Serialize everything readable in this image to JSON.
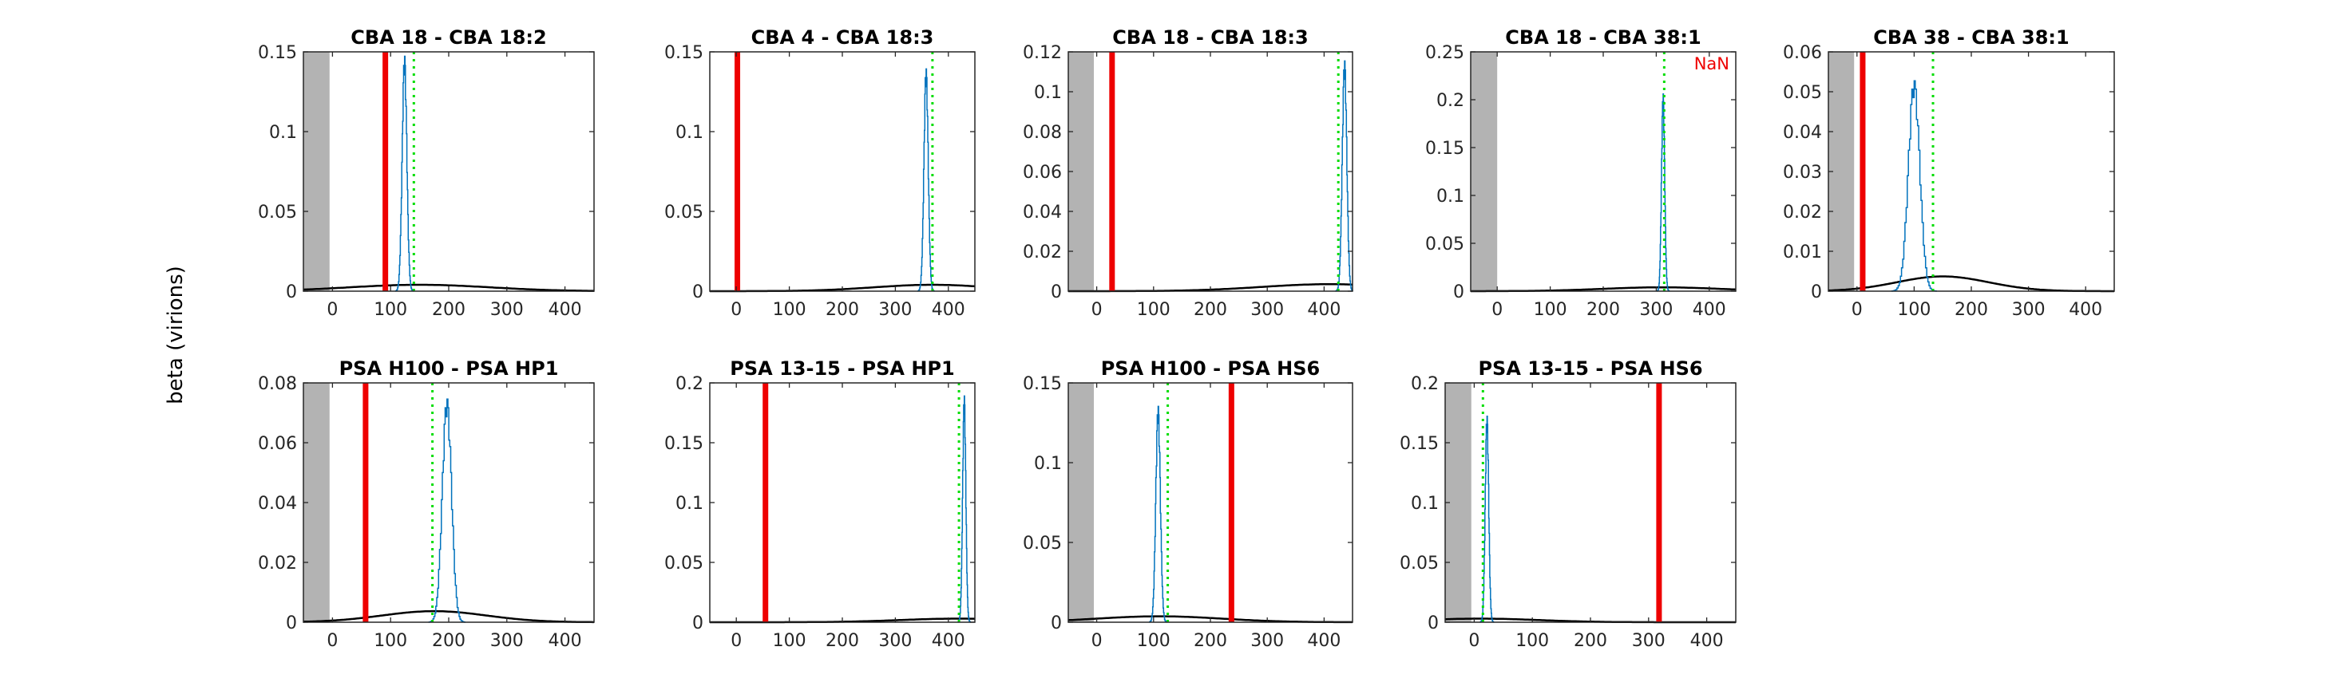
{
  "figure": {
    "ylabel": "beta (virions)"
  },
  "chart_data": [
    {
      "type": "line",
      "title": "CBA 18 - CBA 18:2",
      "xlim": [
        -50,
        450
      ],
      "ylim": [
        0,
        0.15
      ],
      "xticks": [
        0,
        100,
        200,
        300,
        400
      ],
      "yticks": [
        0,
        0.05,
        0.1,
        0.15
      ],
      "ytick_labels": [
        "0",
        "0.05",
        "0.1",
        "0.15"
      ],
      "shaded_x": [
        -50,
        -5
      ],
      "red_line_x": 91,
      "green_line_x": 140,
      "annotation": "",
      "hist_center": 124,
      "hist_width": 4,
      "hist_peak": 0.148,
      "prior_center": 150,
      "prior_width": 120,
      "prior_peak": 0.004
    },
    {
      "type": "line",
      "title": "CBA 4 - CBA 18:3",
      "xlim": [
        -50,
        450
      ],
      "ylim": [
        0,
        0.15
      ],
      "xticks": [
        0,
        100,
        200,
        300,
        400
      ],
      "yticks": [
        0,
        0.05,
        0.1,
        0.15
      ],
      "ytick_labels": [
        "0",
        "0.05",
        "0.1",
        "0.15"
      ],
      "shaded_x": null,
      "red_line_x": 2,
      "green_line_x": 370,
      "annotation": "",
      "hist_center": 358,
      "hist_width": 4,
      "hist_peak": 0.14,
      "prior_center": 370,
      "prior_width": 110,
      "prior_peak": 0.004
    },
    {
      "type": "line",
      "title": "CBA 18 - CBA 18:3",
      "xlim": [
        -50,
        450
      ],
      "ylim": [
        0,
        0.12
      ],
      "xticks": [
        0,
        100,
        200,
        300,
        400
      ],
      "yticks": [
        0,
        0.02,
        0.04,
        0.06,
        0.08,
        0.1,
        0.12
      ],
      "ytick_labels": [
        "0",
        "0.02",
        "0.04",
        "0.06",
        "0.08",
        "0.1",
        "0.12"
      ],
      "shaded_x": [
        -50,
        -5
      ],
      "red_line_x": 27,
      "green_line_x": 425,
      "annotation": "",
      "hist_center": 436,
      "hist_width": 4,
      "hist_peak": 0.116,
      "prior_center": 410,
      "prior_width": 120,
      "prior_peak": 0.0035
    },
    {
      "type": "line",
      "title": "CBA 18 - CBA 38:1",
      "xlim": [
        -50,
        450
      ],
      "ylim": [
        0,
        0.25
      ],
      "xticks": [
        0,
        100,
        200,
        300,
        400
      ],
      "yticks": [
        0,
        0.05,
        0.1,
        0.15,
        0.2,
        0.25
      ],
      "ytick_labels": [
        "0",
        "0.05",
        "0.1",
        "0.15",
        "0.2",
        "0.25"
      ],
      "shaded_x": [
        -50,
        0
      ],
      "red_line_x": null,
      "green_line_x": 315,
      "annotation": "NaN",
      "hist_center": 313,
      "hist_width": 3,
      "hist_peak": 0.207,
      "prior_center": 310,
      "prior_width": 110,
      "prior_peak": 0.004
    },
    {
      "type": "line",
      "title": "CBA 38 - CBA 38:1",
      "xlim": [
        -50,
        450
      ],
      "ylim": [
        0,
        0.06
      ],
      "xticks": [
        0,
        100,
        200,
        300,
        400
      ],
      "yticks": [
        0,
        0.01,
        0.02,
        0.03,
        0.04,
        0.05,
        0.06
      ],
      "ytick_labels": [
        "0",
        "0.01",
        "0.02",
        "0.03",
        "0.04",
        "0.05",
        "0.06"
      ],
      "shaded_x": [
        -50,
        -5
      ],
      "red_line_x": 10,
      "green_line_x": 133,
      "annotation": "",
      "hist_center": 100,
      "hist_width": 10,
      "hist_peak": 0.053,
      "prior_center": 150,
      "prior_width": 80,
      "prior_peak": 0.0037
    },
    {
      "type": "line",
      "title": "PSA H100 - PSA HP1",
      "xlim": [
        -50,
        450
      ],
      "ylim": [
        0,
        0.08
      ],
      "xticks": [
        0,
        100,
        200,
        300,
        400
      ],
      "yticks": [
        0,
        0.02,
        0.04,
        0.06,
        0.08
      ],
      "ytick_labels": [
        "0",
        "0.02",
        "0.04",
        "0.06",
        "0.08"
      ],
      "shaded_x": [
        -50,
        -5
      ],
      "red_line_x": 57,
      "green_line_x": 172,
      "annotation": "",
      "hist_center": 197,
      "hist_width": 8,
      "hist_peak": 0.075,
      "prior_center": 175,
      "prior_width": 90,
      "prior_peak": 0.0037
    },
    {
      "type": "line",
      "title": "PSA 13-15 - PSA HP1",
      "xlim": [
        -50,
        450
      ],
      "ylim": [
        0,
        0.2
      ],
      "xticks": [
        0,
        100,
        200,
        300,
        400
      ],
      "yticks": [
        0,
        0.05,
        0.1,
        0.15,
        0.2
      ],
      "ytick_labels": [
        "0",
        "0.05",
        "0.1",
        "0.15",
        "0.2"
      ],
      "shaded_x": null,
      "red_line_x": 55,
      "green_line_x": 420,
      "annotation": "",
      "hist_center": 430,
      "hist_width": 3,
      "hist_peak": 0.19,
      "prior_center": 420,
      "prior_width": 110,
      "prior_peak": 0.003
    },
    {
      "type": "line",
      "title": "PSA H100 - PSA HS6",
      "xlim": [
        -50,
        450
      ],
      "ylim": [
        0,
        0.15
      ],
      "xticks": [
        0,
        100,
        200,
        300,
        400
      ],
      "yticks": [
        0,
        0.05,
        0.1,
        0.15
      ],
      "ytick_labels": [
        "0",
        "0.05",
        "0.1",
        "0.15"
      ],
      "shaded_x": [
        -50,
        -5
      ],
      "red_line_x": 237,
      "green_line_x": 125,
      "annotation": "",
      "hist_center": 108,
      "hist_width": 4,
      "hist_peak": 0.136,
      "prior_center": 110,
      "prior_width": 110,
      "prior_peak": 0.0037
    },
    {
      "type": "line",
      "title": "PSA 13-15 - PSA HS6",
      "xlim": [
        -50,
        450
      ],
      "ylim": [
        0,
        0.2
      ],
      "xticks": [
        0,
        100,
        200,
        300,
        400
      ],
      "yticks": [
        0,
        0.05,
        0.1,
        0.15,
        0.2
      ],
      "ytick_labels": [
        "0",
        "0.05",
        "0.1",
        "0.15",
        "0.2"
      ],
      "shaded_x": [
        -50,
        -5
      ],
      "red_line_x": 318,
      "green_line_x": 15,
      "annotation": "",
      "hist_center": 22,
      "hist_width": 3,
      "hist_peak": 0.173,
      "prior_center": 10,
      "prior_width": 100,
      "prior_peak": 0.003
    }
  ]
}
